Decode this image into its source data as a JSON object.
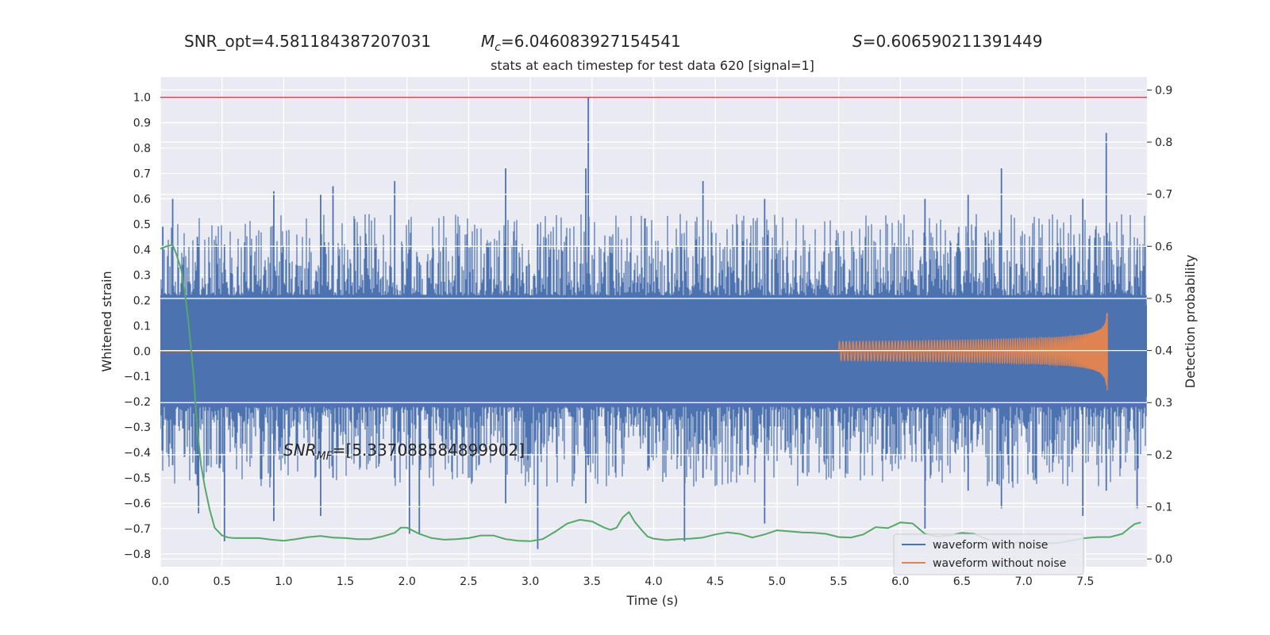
{
  "header": {
    "snr_opt": "SNR_opt=4.581184387207031",
    "mc_label": "M",
    "mc_sub": "c",
    "mc_value": "=6.046083927154541",
    "s_label": "S",
    "s_value": "=0.606590211391449"
  },
  "colors": {
    "plot_bg": "#eaeaf2",
    "grid": "#ffffff",
    "noise": "#4c72b0",
    "clean": "#dd8452",
    "prob": "#55a868",
    "threshold": "#c44e52"
  },
  "chart_data": {
    "type": "line",
    "title": "stats at each timestep for test data 620 [signal=1]",
    "xlabel": "Time (s)",
    "ylabel": "Whitened strain",
    "y2label": "Detection probability",
    "xlim": [
      0,
      8
    ],
    "ylim": [
      -0.85,
      1.08
    ],
    "y2lim": [
      -0.015,
      0.925
    ],
    "grid": true,
    "legend_position": "lower-right",
    "x_ticks": [
      "0.0",
      "0.5",
      "1.0",
      "1.5",
      "2.0",
      "2.5",
      "3.0",
      "3.5",
      "4.0",
      "4.5",
      "5.0",
      "5.5",
      "6.0",
      "6.5",
      "7.0",
      "7.5"
    ],
    "y_ticks": [
      "1.0",
      "0.9",
      "0.8",
      "0.7",
      "0.6",
      "0.5",
      "0.4",
      "0.3",
      "0.2",
      "0.1",
      "0.0",
      "−0.1",
      "−0.2",
      "−0.3",
      "−0.4",
      "−0.5",
      "−0.6",
      "−0.7",
      "−0.8"
    ],
    "y2_ticks": [
      "0.9",
      "0.8",
      "0.7",
      "0.6",
      "0.5",
      "0.4",
      "0.3",
      "0.2",
      "0.1",
      "0.0"
    ],
    "annotation": {
      "label": "SNR",
      "sub": "MF",
      "value": "=[5.337088584899902]"
    },
    "threshold_y": 1.0,
    "series": [
      {
        "name": "waveform with noise",
        "kind": "noise",
        "x_range": [
          0,
          8
        ],
        "dense_envelope": [
          -0.18,
          0.18
        ],
        "spikes": [
          {
            "x": 0.02,
            "top": 0.49,
            "bottom": -0.39
          },
          {
            "x": 0.1,
            "top": 0.6,
            "bottom": -0.45
          },
          {
            "x": 0.3,
            "top": 0.45,
            "bottom": -0.53
          },
          {
            "x": 0.31,
            "top": 0.42,
            "bottom": -0.64
          },
          {
            "x": 0.52,
            "top": 0.42,
            "bottom": -0.75
          },
          {
            "x": 0.92,
            "top": 0.63,
            "bottom": -0.67
          },
          {
            "x": 1.3,
            "top": 0.62,
            "bottom": -0.65
          },
          {
            "x": 1.4,
            "top": 0.65,
            "bottom": -0.5
          },
          {
            "x": 1.9,
            "top": 0.67,
            "bottom": -0.5
          },
          {
            "x": 2.02,
            "top": 0.4,
            "bottom": -0.72
          },
          {
            "x": 2.1,
            "top": 0.35,
            "bottom": -0.72
          },
          {
            "x": 2.8,
            "top": 0.72,
            "bottom": -0.6
          },
          {
            "x": 3.06,
            "top": 0.5,
            "bottom": -0.78
          },
          {
            "x": 3.45,
            "top": 0.72,
            "bottom": -0.6
          },
          {
            "x": 3.47,
            "top": 1.0,
            "bottom": -0.45
          },
          {
            "x": 4.25,
            "top": 0.4,
            "bottom": -0.75
          },
          {
            "x": 4.4,
            "top": 0.67,
            "bottom": -0.5
          },
          {
            "x": 4.9,
            "top": 0.6,
            "bottom": -0.68
          },
          {
            "x": 6.2,
            "top": 0.6,
            "bottom": -0.7
          },
          {
            "x": 6.55,
            "top": 0.62,
            "bottom": -0.55
          },
          {
            "x": 6.82,
            "top": 0.72,
            "bottom": -0.62
          },
          {
            "x": 7.48,
            "top": 0.6,
            "bottom": -0.65
          },
          {
            "x": 7.67,
            "top": 0.86,
            "bottom": -0.55
          },
          {
            "x": 7.92,
            "top": 0.4,
            "bottom": -0.62
          }
        ]
      },
      {
        "name": "waveform without noise",
        "kind": "chirp",
        "x_range": [
          5.5,
          7.68
        ],
        "amplitude_range": [
          0.004,
          0.18
        ],
        "merger_time": 7.68
      },
      {
        "name": "detection probability",
        "kind": "line",
        "axis": "y2",
        "x": [
          0.0,
          0.05,
          0.1,
          0.13,
          0.17,
          0.2,
          0.23,
          0.27,
          0.3,
          0.33,
          0.36,
          0.4,
          0.44,
          0.5,
          0.55,
          0.6,
          0.7,
          0.8,
          0.9,
          1.0,
          1.1,
          1.2,
          1.3,
          1.4,
          1.5,
          1.6,
          1.7,
          1.8,
          1.9,
          1.95,
          2.0,
          2.05,
          2.1,
          2.2,
          2.3,
          2.4,
          2.5,
          2.6,
          2.7,
          2.8,
          2.9,
          3.0,
          3.1,
          3.2,
          3.3,
          3.4,
          3.5,
          3.6,
          3.65,
          3.7,
          3.75,
          3.8,
          3.85,
          3.9,
          3.95,
          4.0,
          4.1,
          4.2,
          4.3,
          4.4,
          4.5,
          4.6,
          4.7,
          4.8,
          4.9,
          5.0,
          5.1,
          5.2,
          5.3,
          5.4,
          5.5,
          5.6,
          5.7,
          5.8,
          5.9,
          6.0,
          6.1,
          6.2,
          6.3,
          6.4,
          6.5,
          6.6,
          6.7,
          6.8,
          6.9,
          7.0,
          7.1,
          7.2,
          7.3,
          7.4,
          7.5,
          7.6,
          7.7,
          7.8,
          7.85,
          7.9,
          7.95
        ],
        "y": [
          0.595,
          0.6,
          0.603,
          0.585,
          0.555,
          0.51,
          0.45,
          0.35,
          0.25,
          0.18,
          0.14,
          0.095,
          0.06,
          0.045,
          0.041,
          0.04,
          0.04,
          0.04,
          0.037,
          0.035,
          0.038,
          0.042,
          0.044,
          0.041,
          0.04,
          0.038,
          0.038,
          0.043,
          0.05,
          0.06,
          0.06,
          0.054,
          0.048,
          0.04,
          0.037,
          0.038,
          0.04,
          0.045,
          0.045,
          0.038,
          0.035,
          0.034,
          0.038,
          0.052,
          0.068,
          0.075,
          0.072,
          0.06,
          0.056,
          0.06,
          0.08,
          0.09,
          0.07,
          0.056,
          0.043,
          0.039,
          0.036,
          0.038,
          0.039,
          0.041,
          0.047,
          0.051,
          0.048,
          0.041,
          0.047,
          0.055,
          0.053,
          0.051,
          0.05,
          0.048,
          0.042,
          0.041,
          0.047,
          0.061,
          0.059,
          0.07,
          0.068,
          0.048,
          0.043,
          0.045,
          0.05,
          0.048,
          0.038,
          0.031,
          0.03,
          0.033,
          0.03,
          0.03,
          0.031,
          0.036,
          0.04,
          0.042,
          0.042,
          0.048,
          0.058,
          0.067,
          0.07
        ]
      }
    ]
  }
}
